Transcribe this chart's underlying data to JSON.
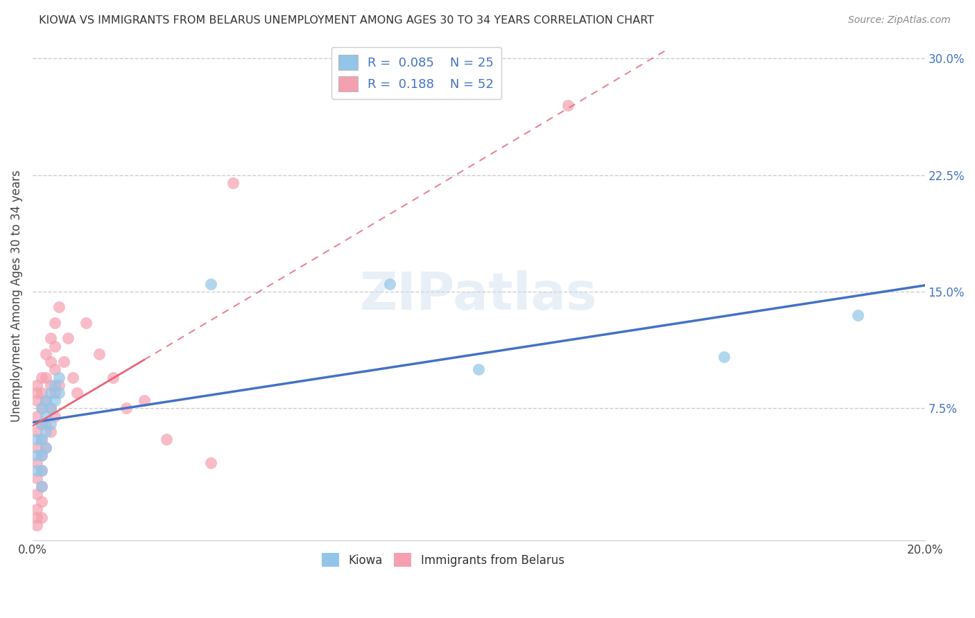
{
  "title": "KIOWA VS IMMIGRANTS FROM BELARUS UNEMPLOYMENT AMONG AGES 30 TO 34 YEARS CORRELATION CHART",
  "source": "Source: ZipAtlas.com",
  "ylabel": "Unemployment Among Ages 30 to 34 years",
  "x_min": 0.0,
  "x_max": 0.2,
  "y_min": -0.01,
  "y_max": 0.305,
  "x_ticks": [
    0.0,
    0.04,
    0.08,
    0.12,
    0.16,
    0.2
  ],
  "x_tick_labels": [
    "0.0%",
    "",
    "",
    "",
    "",
    "20.0%"
  ],
  "y_ticks_right": [
    0.075,
    0.15,
    0.225,
    0.3
  ],
  "y_tick_labels_right": [
    "7.5%",
    "15.0%",
    "22.5%",
    "30.0%"
  ],
  "legend_r1": "R =  0.085",
  "legend_n1": "N = 25",
  "legend_r2": "R =  0.188",
  "legend_n2": "N = 52",
  "color_blue": "#92C5E8",
  "color_pink": "#F4A0B0",
  "color_blue_line": "#4472C4",
  "color_pink_line": "#E8647A",
  "grid_color": "#CCCCCC",
  "kiowa_x": [
    0.001,
    0.001,
    0.001,
    0.002,
    0.002,
    0.002,
    0.002,
    0.002,
    0.002,
    0.003,
    0.003,
    0.003,
    0.003,
    0.004,
    0.004,
    0.004,
    0.005,
    0.005,
    0.006,
    0.006,
    0.04,
    0.08,
    0.1,
    0.155,
    0.185
  ],
  "kiowa_y": [
    0.055,
    0.045,
    0.035,
    0.075,
    0.065,
    0.055,
    0.045,
    0.035,
    0.025,
    0.08,
    0.07,
    0.06,
    0.05,
    0.085,
    0.075,
    0.065,
    0.09,
    0.08,
    0.095,
    0.085,
    0.155,
    0.155,
    0.1,
    0.108,
    0.135
  ],
  "belarus_x": [
    0.001,
    0.001,
    0.001,
    0.001,
    0.001,
    0.001,
    0.001,
    0.001,
    0.001,
    0.001,
    0.001,
    0.001,
    0.002,
    0.002,
    0.002,
    0.002,
    0.002,
    0.002,
    0.002,
    0.002,
    0.002,
    0.002,
    0.003,
    0.003,
    0.003,
    0.003,
    0.003,
    0.004,
    0.004,
    0.004,
    0.004,
    0.004,
    0.005,
    0.005,
    0.005,
    0.005,
    0.005,
    0.006,
    0.006,
    0.007,
    0.008,
    0.009,
    0.01,
    0.012,
    0.015,
    0.018,
    0.021,
    0.025,
    0.03,
    0.04,
    0.045,
    0.12
  ],
  "belarus_y": [
    0.08,
    0.07,
    0.06,
    0.05,
    0.04,
    0.03,
    0.02,
    0.01,
    0.005,
    0.0,
    0.09,
    0.085,
    0.075,
    0.065,
    0.055,
    0.045,
    0.035,
    0.025,
    0.015,
    0.005,
    0.095,
    0.085,
    0.11,
    0.095,
    0.08,
    0.065,
    0.05,
    0.12,
    0.105,
    0.09,
    0.075,
    0.06,
    0.13,
    0.115,
    0.1,
    0.085,
    0.07,
    0.14,
    0.09,
    0.105,
    0.12,
    0.095,
    0.085,
    0.13,
    0.11,
    0.095,
    0.075,
    0.08,
    0.055,
    0.04,
    0.22,
    0.27
  ]
}
